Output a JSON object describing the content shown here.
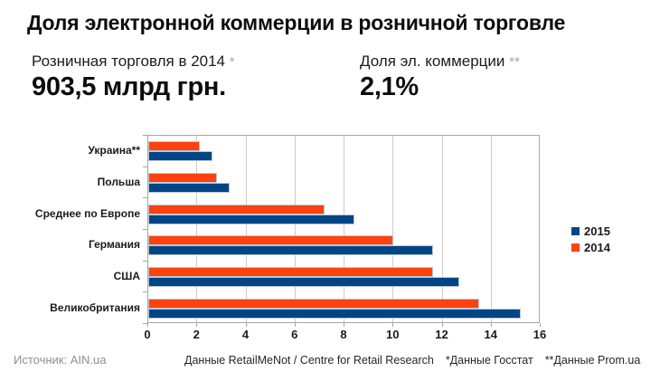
{
  "title": "Доля электронной коммерции в розничной торговле",
  "stats": {
    "left": {
      "label": "Розничная торговля в 2014",
      "asterisk": "*",
      "value": "903,5 млрд грн."
    },
    "right": {
      "label": "Доля эл. коммерции",
      "asterisk": "**",
      "value": "2,1%"
    }
  },
  "chart_data": {
    "type": "bar",
    "orientation": "horizontal",
    "title": "",
    "categories": [
      "Украина**",
      "Польша",
      "Среднее по Европе",
      "Германия",
      "США",
      "Великобритания"
    ],
    "series": [
      {
        "name": "2015",
        "color": "#004586",
        "values": [
          2.6,
          3.3,
          8.4,
          11.6,
          12.7,
          15.2
        ]
      },
      {
        "name": "2014",
        "color": "#FF420E",
        "values": [
          2.1,
          2.8,
          7.2,
          10.0,
          11.6,
          13.5
        ]
      }
    ],
    "bar_order_top_to_bottom": [
      "2014",
      "2015"
    ],
    "xlim": [
      0,
      16
    ],
    "xticks": [
      0,
      2,
      4,
      6,
      8,
      10,
      12,
      14,
      16
    ],
    "grid": true,
    "legend_position": "right-middle",
    "colors": {
      "grid": "#cccccc",
      "plot_border": "#a6a6a6",
      "bar_outline": "#bfc6d4"
    }
  },
  "footer": {
    "source": "Источник: AIN.ua",
    "credits": "Данные RetailMeNot / Centre for Retail Research",
    "note1": "*Данные Госстат",
    "note2": "**Данные Prom.ua"
  }
}
